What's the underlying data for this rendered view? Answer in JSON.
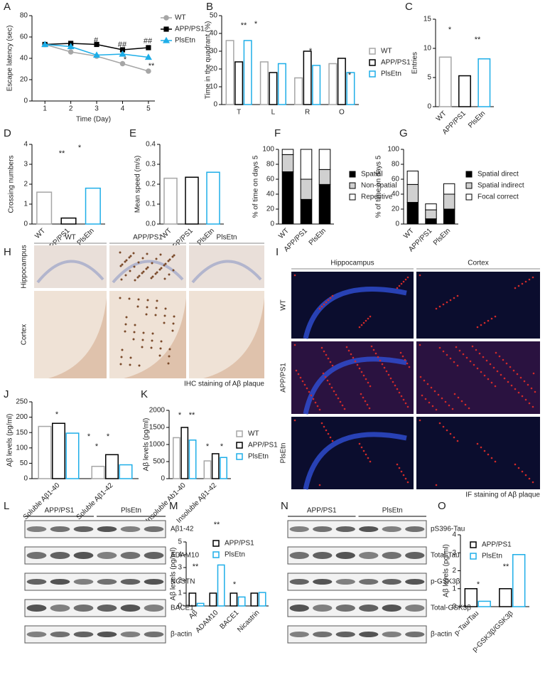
{
  "chart_data": [
    {
      "type": "line",
      "panel": "A",
      "ylabel": "Escape latency (sec)",
      "xlabel": "Time (Day)",
      "x": [
        1,
        2,
        3,
        4,
        5
      ],
      "xlim": [
        0.5,
        5.25
      ],
      "xticks": [
        1,
        2,
        3,
        4,
        5
      ],
      "ylim": [
        0,
        80
      ],
      "yticks": [
        0,
        20,
        40,
        60,
        80
      ],
      "series": [
        {
          "name": "WT",
          "color": "#a6a6a6",
          "marker": "circle",
          "values": [
            53,
            46,
            42,
            35,
            28
          ]
        },
        {
          "name": "APP/PS1",
          "color": "#000000",
          "marker": "square",
          "values": [
            53,
            54,
            53,
            48,
            50
          ]
        },
        {
          "name": "PlsEtn",
          "color": "#1eaee8",
          "marker": "triangle",
          "values": [
            53,
            51,
            43,
            44,
            41
          ]
        }
      ],
      "annotations": [
        "#",
        "##",
        "##",
        "*",
        "**"
      ]
    },
    {
      "type": "bar",
      "panel": "B",
      "ylabel": "Time in the quadrant (%)",
      "categories": [
        "T",
        "L",
        "R",
        "O"
      ],
      "ylim": [
        0,
        50
      ],
      "yticks": [
        0,
        10,
        20,
        30,
        40,
        50
      ],
      "series": [
        {
          "name": "WT",
          "color": "#a6a6a6",
          "values": [
            36,
            24,
            15,
            23
          ]
        },
        {
          "name": "APP/PS1",
          "color": "#000000",
          "values": [
            24,
            18,
            30,
            26
          ]
        },
        {
          "name": "PlsEtn",
          "color": "#1eaee8",
          "values": [
            36,
            23,
            22,
            18
          ]
        }
      ],
      "annotations": [
        "**",
        "*",
        "*",
        "*"
      ]
    },
    {
      "type": "bar",
      "panel": "C",
      "ylabel": "Entries",
      "categories": [
        "WT",
        "APP/PS1",
        "PlsEtn"
      ],
      "values": [
        8.5,
        5.3,
        8.2
      ],
      "colors": [
        "#a6a6a6",
        "#000000",
        "#1eaee8"
      ],
      "ylim": [
        0,
        15
      ],
      "yticks": [
        0,
        5,
        10,
        15
      ],
      "annotations": [
        "*",
        "**"
      ]
    },
    {
      "type": "bar",
      "panel": "D",
      "ylabel": "Crossing numbers",
      "categories": [
        "WT",
        "APP/PS1",
        "PlsEtn"
      ],
      "values": [
        1.6,
        0.3,
        1.8
      ],
      "colors": [
        "#a6a6a6",
        "#000000",
        "#1eaee8"
      ],
      "ylim": [
        0,
        4
      ],
      "yticks": [
        0,
        1,
        2,
        3,
        4
      ],
      "annotations": [
        "**",
        "*"
      ]
    },
    {
      "type": "bar",
      "panel": "E",
      "ylabel": "Mean speed (m/s)",
      "categories": [
        "WT",
        "APP/PS1",
        "PlsEtn"
      ],
      "values": [
        0.23,
        0.235,
        0.26
      ],
      "colors": [
        "#a6a6a6",
        "#000000",
        "#1eaee8"
      ],
      "ylim": [
        0,
        0.4
      ],
      "yticks": [
        {
          "value": 0,
          "label": "0.0"
        },
        0.1,
        0.2,
        0.3,
        0.4
      ]
    },
    {
      "type": "stacked_bar",
      "panel": "F",
      "ylabel": "% of time on days 5",
      "categories": [
        "WT",
        "APP/PS1",
        "PlsEtn"
      ],
      "ylim": [
        0,
        100
      ],
      "yticks": [
        0,
        20,
        40,
        60,
        80,
        100
      ],
      "series": [
        {
          "name": "Spatial",
          "color": "#000000",
          "values": [
            70,
            33,
            53
          ]
        },
        {
          "name": "Non-spatial",
          "color": "#d0d0d0",
          "values": [
            23,
            27,
            20
          ]
        },
        {
          "name": "Repetitive",
          "color": "#ffffff",
          "values": [
            7,
            40,
            27
          ]
        }
      ]
    },
    {
      "type": "stacked_bar",
      "panel": "G",
      "ylabel": "% of time on days 5",
      "categories": [
        "WT",
        "APP/PS1",
        "PlsEtn"
      ],
      "ylim": [
        0,
        100
      ],
      "yticks": [
        0,
        20,
        40,
        60,
        80,
        100
      ],
      "series": [
        {
          "name": "Spatial direct",
          "color": "#000000",
          "values": [
            29,
            7,
            20
          ]
        },
        {
          "name": "Spatial indirect",
          "color": "#d0d0d0",
          "values": [
            24,
            12,
            20
          ]
        },
        {
          "name": "Focal correct",
          "color": "#ffffff",
          "values": [
            18,
            8,
            14
          ]
        }
      ]
    },
    {
      "type": "bar",
      "panel": "J",
      "ylabel": "Aβ levels (pg/ml)",
      "categories": [
        "Soluble Aβ1-40",
        "Soluble Aβ1-42"
      ],
      "ylim": [
        0,
        250
      ],
      "yticks": [
        0,
        50,
        100,
        150,
        200,
        250
      ],
      "series": [
        {
          "name": "WT",
          "color": "#a6a6a6",
          "values": [
            170,
            40
          ]
        },
        {
          "name": "APP/PS1",
          "color": "#000000",
          "values": [
            180,
            78
          ]
        },
        {
          "name": "PlsEtn",
          "color": "#1eaee8",
          "values": [
            148,
            45
          ]
        }
      ],
      "annotations": [
        "*",
        "*",
        "*",
        "*"
      ]
    },
    {
      "type": "bar",
      "panel": "K",
      "ylabel": "Aβ levels (pg/ml)",
      "categories": [
        "Insoluble Ab1-40",
        "Insoluble Aβ1-42"
      ],
      "ylim": [
        0,
        2000
      ],
      "yticks": [
        0,
        500,
        1000,
        1500,
        2000
      ],
      "legend": true,
      "series": [
        {
          "name": "WT",
          "color": "#a6a6a6",
          "values": [
            1200,
            520
          ]
        },
        {
          "name": "APP/PS1",
          "color": "#000000",
          "values": [
            1500,
            730
          ]
        },
        {
          "name": "PlsEtn",
          "color": "#1eaee8",
          "values": [
            1130,
            620
          ]
        }
      ],
      "annotations": [
        "*",
        "**",
        "*",
        "*"
      ]
    },
    {
      "type": "bar",
      "panel": "M",
      "ylabel": "Aβ levels (pg/ml)",
      "categories": [
        "Aβ",
        "ADAM10",
        "BACE1",
        "Nicastrin"
      ],
      "ylim": [
        0,
        5
      ],
      "yticks": [
        0,
        1,
        2,
        3,
        4,
        5
      ],
      "legend": true,
      "series": [
        {
          "name": "APP/PS1",
          "color": "#000000",
          "values": [
            1.0,
            1.0,
            1.0,
            1.0
          ]
        },
        {
          "name": "PlsEtn",
          "color": "#1eaee8",
          "values": [
            0.2,
            3.2,
            0.7,
            1.05
          ]
        }
      ],
      "annotations": [
        "**",
        "**",
        "*"
      ]
    },
    {
      "type": "bar",
      "panel": "O",
      "ylabel": "Aβ levels (pg/ml)",
      "categories": [
        "p-Tau/Tau",
        "p-GSK3β/GSK3β"
      ],
      "ylim": [
        0,
        4
      ],
      "yticks": [
        0,
        1,
        2,
        3,
        4
      ],
      "legend": true,
      "series": [
        {
          "name": "APP/PS1",
          "color": "#000000",
          "values": [
            1.0,
            1.0
          ]
        },
        {
          "name": "PlsEtn",
          "color": "#1eaee8",
          "values": [
            0.3,
            2.9
          ]
        }
      ],
      "annotations": [
        "*",
        "**"
      ]
    }
  ],
  "figures": [
    {
      "panel": "H",
      "columns": [
        "WT",
        "APP/PS1",
        "PlsEtn"
      ],
      "rows": [
        "Hippocampus",
        "Cortex"
      ],
      "caption": "IHC staining of Aβ plaque"
    },
    {
      "panel": "I",
      "columns": [
        "Hippocampus",
        "Cortex"
      ],
      "rows": [
        "WT",
        "APP/PS1",
        "PlsEtn"
      ],
      "caption": "IF staining of Aβ plaque"
    },
    {
      "panel": "L",
      "groups": [
        "APP/PS1",
        "PlsEtn"
      ],
      "rows": [
        "Aβ1-42",
        "ADAM10",
        "NCSTN",
        "BACE1",
        "β-actin"
      ]
    },
    {
      "panel": "N",
      "groups": [
        "APP/PS1",
        "PlsEtn"
      ],
      "rows": [
        "pS396-Tau",
        "Total-Tau",
        "p-GSK3β",
        "Total-GSK3β",
        "β-actin"
      ]
    }
  ]
}
